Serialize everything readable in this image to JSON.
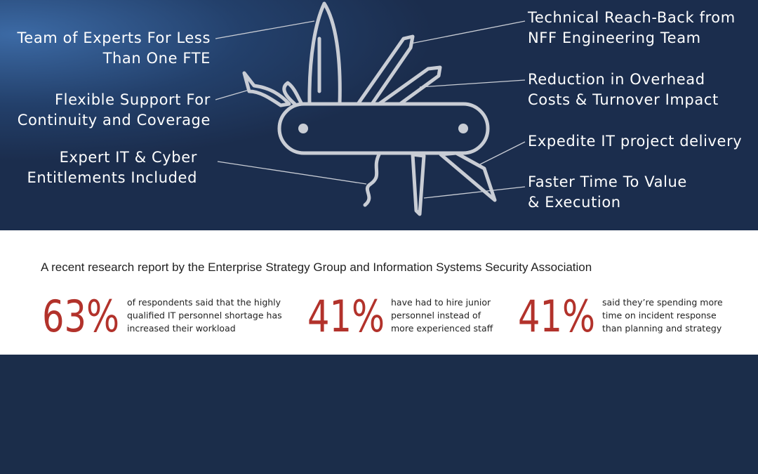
{
  "knife_labels": {
    "left": [
      {
        "lines": [
          "Team of Experts For Less",
          "Than One FTE"
        ]
      },
      {
        "lines": [
          "Flexible Support For",
          "Continuity and Coverage"
        ]
      },
      {
        "lines": [
          "Expert IT & Cyber",
          "Entitlements Included"
        ]
      }
    ],
    "right": [
      {
        "lines": [
          "Technical Reach-Back from",
          "NFF Engineering Team"
        ]
      },
      {
        "lines": [
          "Reduction in Overhead",
          "Costs & Turnover Impact"
        ]
      },
      {
        "lines": [
          "Expedite IT project delivery"
        ]
      },
      {
        "lines": [
          "Faster Time To Value",
          "& Execution"
        ]
      }
    ]
  },
  "research": {
    "intro": "A recent research report by the Enterprise Strategy Group and Information Systems Security Association",
    "stats": [
      {
        "figure": "63%",
        "lines": [
          "of respondents said that the highly",
          "qualified IT personnel shortage has",
          "increased their workload"
        ]
      },
      {
        "figure": "41%",
        "lines": [
          "have had to hire junior",
          "personnel instead of",
          "more experienced staff"
        ]
      },
      {
        "figure": "41%",
        "lines": [
          "said they’re spending more",
          "time on incident response",
          "than planning and strategy"
        ]
      }
    ]
  }
}
